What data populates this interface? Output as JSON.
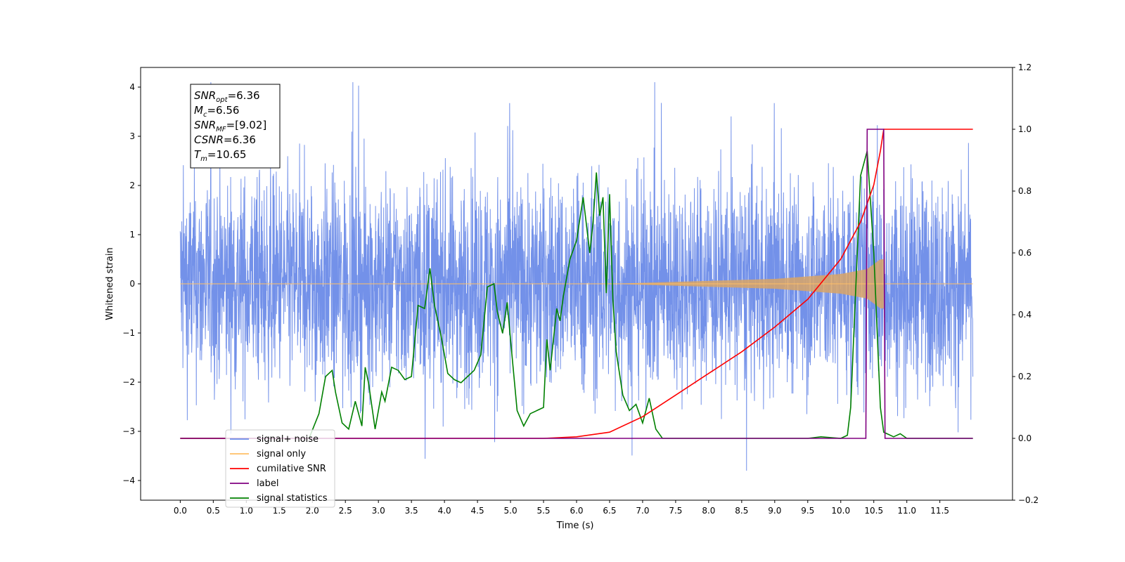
{
  "chart_data": {
    "type": "line",
    "xlabel": "Time (s)",
    "ylabel": "Whitened strain",
    "xlim": [
      -0.6,
      12.6
    ],
    "ylim_left": [
      -4.4,
      4.4
    ],
    "ylim_right": [
      -0.2,
      1.2
    ],
    "x_ticks": [
      "0.0",
      "0.5",
      "1.0",
      "1.5",
      "2.0",
      "2.5",
      "3.0",
      "3.5",
      "4.0",
      "4.5",
      "5.0",
      "5.5",
      "6.0",
      "6.5",
      "7.0",
      "7.5",
      "8.0",
      "8.5",
      "9.0",
      "9.5",
      "10.0",
      "10.5",
      "11.0",
      "11.5"
    ],
    "y_ticks_left": [
      "4",
      "3",
      "2",
      "1",
      "0",
      "−1",
      "−2",
      "−3",
      "−4"
    ],
    "y_ticks_right": [
      "1.2",
      "1.0",
      "0.8",
      "0.6",
      "0.4",
      "0.2",
      "0.0",
      "−0.2"
    ],
    "annotation": [
      {
        "name": "SNR",
        "sub": "opt",
        "value": "=6.36"
      },
      {
        "name": "M",
        "sub": "c",
        "value": "=6.56"
      },
      {
        "name": "SNR",
        "sub": "MF",
        "value": "=[9.02]"
      },
      {
        "name": "CSNR",
        "sub": "",
        "value": "=6.36"
      },
      {
        "name": "T",
        "sub": "m",
        "value": "=10.65"
      }
    ],
    "legend": [
      {
        "label": "signal+ noise",
        "color": "#6b8be8"
      },
      {
        "label": "signal only",
        "color": "#ffbf66"
      },
      {
        "label": "cumilative SNR",
        "color": "#ff0000"
      },
      {
        "label": "label",
        "color": "#800080"
      },
      {
        "label": "signal statistics",
        "color": "#008000"
      }
    ],
    "legend_placement": "lower-left",
    "series": [
      {
        "name": "signal+ noise",
        "axis": "left",
        "x_range": [
          0.0,
          12.0
        ],
        "approx_envelope_low": -3.5,
        "approx_envelope_high": 3.5,
        "color": "#6b8be8"
      },
      {
        "name": "signal only",
        "axis": "left",
        "x_range": [
          0.0,
          10.65
        ],
        "amplitude": [
          [
            0.0,
            0.0
          ],
          [
            6.5,
            0.0
          ],
          [
            8.0,
            0.06
          ],
          [
            9.0,
            0.1
          ],
          [
            10.0,
            0.2
          ],
          [
            10.4,
            0.3
          ],
          [
            10.6,
            0.5
          ]
        ],
        "color": "#ffbf66"
      },
      {
        "name": "cumilative SNR",
        "axis": "right",
        "x": [
          0.0,
          5.5,
          6.0,
          6.5,
          7.0,
          7.5,
          8.0,
          8.5,
          9.0,
          9.5,
          10.0,
          10.3,
          10.5,
          10.6,
          10.65,
          12.0
        ],
        "y": [
          0.0,
          0.0,
          0.005,
          0.02,
          0.07,
          0.14,
          0.21,
          0.28,
          0.36,
          0.45,
          0.58,
          0.7,
          0.82,
          0.93,
          1.0,
          1.0
        ],
        "color": "#ff0000"
      },
      {
        "name": "label",
        "axis": "right",
        "x": [
          0.0,
          10.38,
          10.4,
          10.65,
          10.67,
          12.0
        ],
        "y": [
          0.0,
          0.0,
          1.0,
          1.0,
          0.0,
          0.0
        ],
        "color": "#800080"
      },
      {
        "name": "signal statistics",
        "axis": "right",
        "x": [
          0.0,
          1.95,
          2.1,
          2.2,
          2.3,
          2.35,
          2.45,
          2.55,
          2.65,
          2.75,
          2.8,
          2.85,
          2.95,
          3.05,
          3.1,
          3.2,
          3.3,
          3.4,
          3.5,
          3.6,
          3.7,
          3.78,
          3.85,
          3.95,
          4.05,
          4.15,
          4.25,
          4.35,
          4.45,
          4.55,
          4.65,
          4.75,
          4.8,
          4.88,
          4.95,
          5.0,
          5.1,
          5.2,
          5.3,
          5.4,
          5.5,
          5.55,
          5.6,
          5.7,
          5.75,
          5.8,
          5.9,
          6.0,
          6.1,
          6.2,
          6.25,
          6.3,
          6.35,
          6.4,
          6.45,
          6.5,
          6.55,
          6.6,
          6.7,
          6.8,
          6.9,
          7.0,
          7.1,
          7.2,
          7.3,
          7.5,
          9.5,
          9.7,
          10.0,
          10.1,
          10.15,
          10.2,
          10.3,
          10.4,
          10.5,
          10.55,
          10.6,
          10.65,
          10.7,
          10.8,
          10.9,
          11.0,
          11.1,
          11.2,
          12.0
        ],
        "y": [
          0.0,
          0.0,
          0.08,
          0.2,
          0.22,
          0.15,
          0.05,
          0.03,
          0.12,
          0.04,
          0.23,
          0.18,
          0.03,
          0.15,
          0.12,
          0.23,
          0.22,
          0.19,
          0.2,
          0.43,
          0.42,
          0.55,
          0.43,
          0.33,
          0.21,
          0.19,
          0.18,
          0.2,
          0.22,
          0.27,
          0.49,
          0.5,
          0.41,
          0.34,
          0.44,
          0.32,
          0.09,
          0.04,
          0.08,
          0.09,
          0.1,
          0.32,
          0.22,
          0.42,
          0.38,
          0.46,
          0.58,
          0.64,
          0.78,
          0.6,
          0.7,
          0.86,
          0.72,
          0.78,
          0.47,
          0.79,
          0.45,
          0.28,
          0.14,
          0.09,
          0.11,
          0.05,
          0.13,
          0.03,
          0.0,
          0.0,
          0.0,
          0.005,
          0.0,
          0.01,
          0.1,
          0.35,
          0.85,
          0.93,
          0.6,
          0.35,
          0.1,
          0.02,
          0.015,
          0.005,
          0.015,
          0.0,
          0.0,
          0.0,
          0.0
        ],
        "color": "#008000"
      }
    ]
  }
}
